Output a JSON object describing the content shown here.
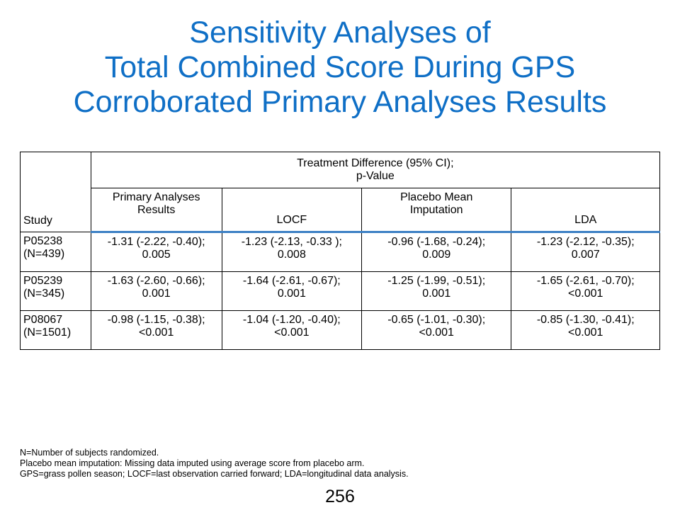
{
  "title": {
    "line1": "Sensitivity Analyses of",
    "line2": "Total Combined Score During GPS",
    "line3": "Corroborated Primary Analyses Results"
  },
  "table": {
    "group_header": {
      "line1": "Treatment Difference (95% CI);",
      "line2": "p-Value"
    },
    "study_header": "Study",
    "columns": [
      {
        "line1": "Primary Analyses",
        "line2": "Results"
      },
      {
        "line1": "LOCF",
        "line2": ""
      },
      {
        "line1": "Placebo Mean",
        "line2": "Imputation"
      },
      {
        "line1": "LDA",
        "line2": ""
      }
    ],
    "rows": [
      {
        "study": "P05238",
        "n": "(N=439)",
        "cells": [
          {
            "ci": "-1.31 (-2.22, -0.40);",
            "p": "0.005"
          },
          {
            "ci": "-1.23 (-2.13, -0.33 );",
            "p": "0.008"
          },
          {
            "ci": "-0.96 (-1.68, -0.24);",
            "p": "0.009"
          },
          {
            "ci": "-1.23 (-2.12, -0.35);",
            "p": "0.007"
          }
        ]
      },
      {
        "study": "P05239",
        "n": "(N=345)",
        "cells": [
          {
            "ci": "-1.63 (-2.60, -0.66);",
            "p": "0.001"
          },
          {
            "ci": "-1.64 (-2.61, -0.67);",
            "p": "0.001"
          },
          {
            "ci": "-1.25 (-1.99, -0.51);",
            "p": "0.001"
          },
          {
            "ci": "-1.65 (-2.61, -0.70);",
            "p": "<0.001"
          }
        ]
      },
      {
        "study": "P08067",
        "n": "(N=1501)",
        "cells": [
          {
            "ci": "-0.98 (-1.15, -0.38);",
            "p": "<0.001"
          },
          {
            "ci": "-1.04 (-1.20, -0.40);",
            "p": "<0.001"
          },
          {
            "ci": "-0.65 (-1.01, -0.30);",
            "p": "<0.001"
          },
          {
            "ci": "-0.85 (-1.30, -0.41);",
            "p": "<0.001"
          }
        ]
      }
    ]
  },
  "footnotes": [
    "N=Number of subjects randomized.",
    "Placebo mean imputation: Missing data imputed using average score from placebo arm.",
    "GPS=grass pollen season; LOCF=last observation carried forward; LDA=longitudinal data analysis."
  ],
  "page_number": "256",
  "colors": {
    "title": "#0f6fc6",
    "header_rule": "#3b7fc4"
  }
}
